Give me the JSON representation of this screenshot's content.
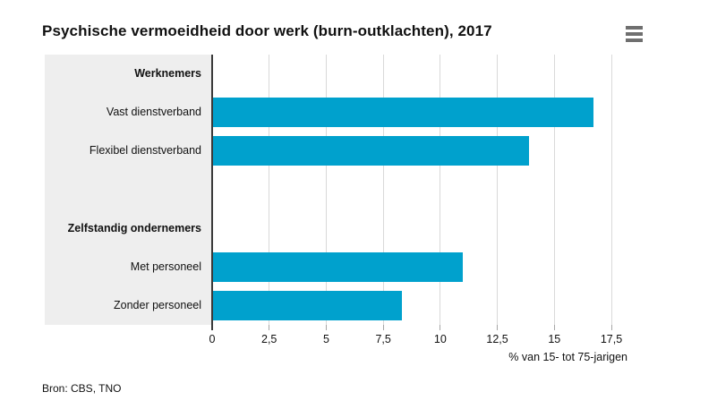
{
  "header": {
    "title": "Psychische vermoeidheid door werk (burn-outklachten), 2017",
    "menu_icon": "hamburger-menu-icon"
  },
  "chart_data": {
    "type": "bar",
    "orientation": "horizontal",
    "title": "Psychische vermoeidheid door werk (burn-outklachten), 2017",
    "xlabel": "% van 15- tot 75-jarigen",
    "xticks": [
      0,
      2.5,
      5,
      7.5,
      10,
      12.5,
      15,
      17.5
    ],
    "xtick_labels": [
      "0",
      "2,5",
      "5",
      "7,5",
      "10",
      "12,5",
      "15",
      "17,5"
    ],
    "xlim": [
      0,
      18.2
    ],
    "grid": true,
    "bar_color": "#00a1cd",
    "groups": [
      {
        "header": "Werknemers",
        "items": [
          {
            "label": "Vast dienstverband",
            "value": 16.7
          },
          {
            "label": "Flexibel dienstverband",
            "value": 13.9
          }
        ]
      },
      {
        "header": "Zelfstandig ondernemers",
        "items": [
          {
            "label": "Met personeel",
            "value": 11.0
          },
          {
            "label": "Zonder personeel",
            "value": 8.3
          }
        ]
      }
    ]
  },
  "footer": {
    "source": "Bron: CBS, TNO"
  },
  "colors": {
    "bar": "#00a1cd",
    "label_panel": "#eeeeee",
    "gridline": "#d9d9d9",
    "axis_line": "#3a3a3a",
    "tick_mark": "#a6a6a6",
    "text": "#111111",
    "menu_icon": "#6f6f6f",
    "background": "#ffffff"
  }
}
